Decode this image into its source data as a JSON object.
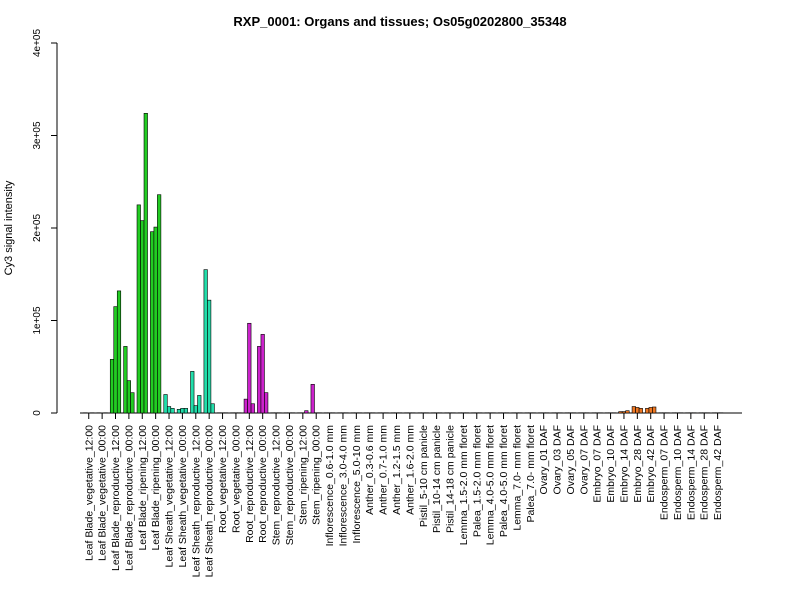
{
  "chart_data": {
    "type": "bar",
    "title": "RXP_0001: Organs and tissues; Os05g0202800_35348",
    "xlabel": "",
    "ylabel": "Cy3 signal intensity",
    "ylim": [
      0,
      400000
    ],
    "yticks": [
      0,
      100000,
      200000,
      300000,
      400000
    ],
    "ytick_labels": [
      "0",
      "1e+05",
      "2e+05",
      "3e+05",
      "4e+05"
    ],
    "grid": false,
    "groups": [
      {
        "label": "Leaf Blade_vegetative_12:00",
        "values": [
          300,
          200,
          300
        ],
        "color": "#22cc22"
      },
      {
        "label": "Leaf Blade_vegetative_00:00",
        "values": [
          300,
          200,
          300
        ],
        "color": "#22cc22"
      },
      {
        "label": "Leaf Blade_reproductive_12:00",
        "values": [
          58000,
          115000,
          132000
        ],
        "color": "#22cc22"
      },
      {
        "label": "Leaf Blade_reproductive_00:00",
        "values": [
          72000,
          35000,
          22000
        ],
        "color": "#22cc22"
      },
      {
        "label": "Leaf Blade_ripening_12:00",
        "values": [
          225000,
          208000,
          324000
        ],
        "color": "#22cc22"
      },
      {
        "label": "Leaf Blade_ripening_00:00",
        "values": [
          196000,
          201000,
          236000
        ],
        "color": "#22cc22"
      },
      {
        "label": "Leaf Sheath_vegetative_12:00",
        "values": [
          20000,
          7000,
          5000
        ],
        "color": "#22ddaa"
      },
      {
        "label": "Leaf Sheath_vegetative_00:00",
        "values": [
          4000,
          5000,
          5000
        ],
        "color": "#22ddaa"
      },
      {
        "label": "Leaf Sheath_reproductive_12:00",
        "values": [
          45000,
          8000,
          19000
        ],
        "color": "#22ddaa"
      },
      {
        "label": "Leaf Sheath_reproductive_00:00",
        "values": [
          155000,
          122000,
          10000
        ],
        "color": "#22ddaa"
      },
      {
        "label": "Root_vegetative_12:00",
        "values": [
          300,
          300,
          300
        ],
        "color": "#cc22cc"
      },
      {
        "label": "Root_vegetative_00:00",
        "values": [
          300,
          300,
          300
        ],
        "color": "#cc22cc"
      },
      {
        "label": "Root_reproductive_12:00",
        "values": [
          15000,
          97000,
          10000
        ],
        "color": "#cc22cc"
      },
      {
        "label": "Root_reproductive_00:00",
        "values": [
          72000,
          85000,
          22000
        ],
        "color": "#cc22cc"
      },
      {
        "label": "Stem_reproductive_12:00",
        "values": [
          300,
          300,
          300
        ],
        "color": "#cc22cc"
      },
      {
        "label": "Stem_reproductive_00:00",
        "values": [
          300,
          300,
          300
        ],
        "color": "#cc22cc"
      },
      {
        "label": "Stem_ripening_12:00",
        "values": [
          300,
          300,
          2500
        ],
        "color": "#cc22cc"
      },
      {
        "label": "Stem_ripening_00:00",
        "values": [
          31000,
          300,
          300
        ],
        "color": "#cc22cc"
      },
      {
        "label": "Inflorescence_0.6-1.0 mm",
        "values": [
          300,
          300,
          300
        ],
        "color": "#999999"
      },
      {
        "label": "Inflorescence_3.0-4.0 mm",
        "values": [
          300,
          300,
          300
        ],
        "color": "#999999"
      },
      {
        "label": "Inflorescence_5.0-10 mm",
        "values": [
          300,
          300,
          300
        ],
        "color": "#999999"
      },
      {
        "label": "Anther_0.3-0.6 mm",
        "values": [
          300,
          300,
          300
        ],
        "color": "#999999"
      },
      {
        "label": "Anther_0.7-1.0 mm",
        "values": [
          300,
          300,
          300
        ],
        "color": "#999999"
      },
      {
        "label": "Anther_1.2-1.5 mm",
        "values": [
          300,
          300,
          300
        ],
        "color": "#999999"
      },
      {
        "label": "Anther_1.6-2.0 mm",
        "values": [
          300,
          300,
          300
        ],
        "color": "#999999"
      },
      {
        "label": "Pistil_5-10 cm panicle",
        "values": [
          300,
          300,
          300
        ],
        "color": "#999999"
      },
      {
        "label": "Pistil_10-14 cm panicle",
        "values": [
          300,
          300,
          300
        ],
        "color": "#999999"
      },
      {
        "label": "Pistil_14-18 cm panicle",
        "values": [
          300,
          300,
          300
        ],
        "color": "#999999"
      },
      {
        "label": "Lemma_1.5-2.0 mm floret",
        "values": [
          300,
          300,
          300
        ],
        "color": "#999999"
      },
      {
        "label": "Palea_1.5-2.0 mm floret",
        "values": [
          300,
          300,
          300
        ],
        "color": "#999999"
      },
      {
        "label": "Lemma_4.0-5.0 mm floret",
        "values": [
          300,
          300,
          300
        ],
        "color": "#999999"
      },
      {
        "label": "Palea_4.0-5.0 mm floret",
        "values": [
          300,
          300,
          300
        ],
        "color": "#999999"
      },
      {
        "label": "Lemma_7.0- mm floret",
        "values": [
          300,
          300,
          300
        ],
        "color": "#999999"
      },
      {
        "label": "Palea_7.0- mm floret",
        "values": [
          300,
          300,
          300
        ],
        "color": "#999999"
      },
      {
        "label": "Ovary_01 DAF",
        "values": [
          300,
          300,
          300
        ],
        "color": "#999999"
      },
      {
        "label": "Ovary_03 DAF",
        "values": [
          300,
          300,
          300
        ],
        "color": "#999999"
      },
      {
        "label": "Ovary_05 DAF",
        "values": [
          300,
          300,
          300
        ],
        "color": "#999999"
      },
      {
        "label": "Ovary_07 DAF",
        "values": [
          300,
          300,
          300
        ],
        "color": "#999999"
      },
      {
        "label": "Embryo_07 DAF",
        "values": [
          300,
          300,
          300
        ],
        "color": "#ee7722"
      },
      {
        "label": "Embryo_10 DAF",
        "values": [
          300,
          300,
          300
        ],
        "color": "#ee7722"
      },
      {
        "label": "Embryo_14 DAF",
        "values": [
          1500,
          1500,
          2500
        ],
        "color": "#ee7722"
      },
      {
        "label": "Embryo_28 DAF",
        "values": [
          7000,
          6000,
          5000
        ],
        "color": "#ee7722"
      },
      {
        "label": "Embryo_42 DAF",
        "values": [
          5000,
          6000,
          6500
        ],
        "color": "#ee7722"
      },
      {
        "label": "Endosperm_07 DAF",
        "values": [
          300,
          300,
          300
        ],
        "color": "#ee7722"
      },
      {
        "label": "Endosperm_10 DAF",
        "values": [
          300,
          300,
          300
        ],
        "color": "#ee7722"
      },
      {
        "label": "Endosperm_14 DAF",
        "values": [
          300,
          300,
          300
        ],
        "color": "#ee7722"
      },
      {
        "label": "Endosperm_28 DAF",
        "values": [
          300,
          300,
          300
        ],
        "color": "#ee7722"
      },
      {
        "label": "Endosperm_42 DAF",
        "values": [
          300,
          300,
          300
        ],
        "color": "#ee7722"
      }
    ]
  }
}
